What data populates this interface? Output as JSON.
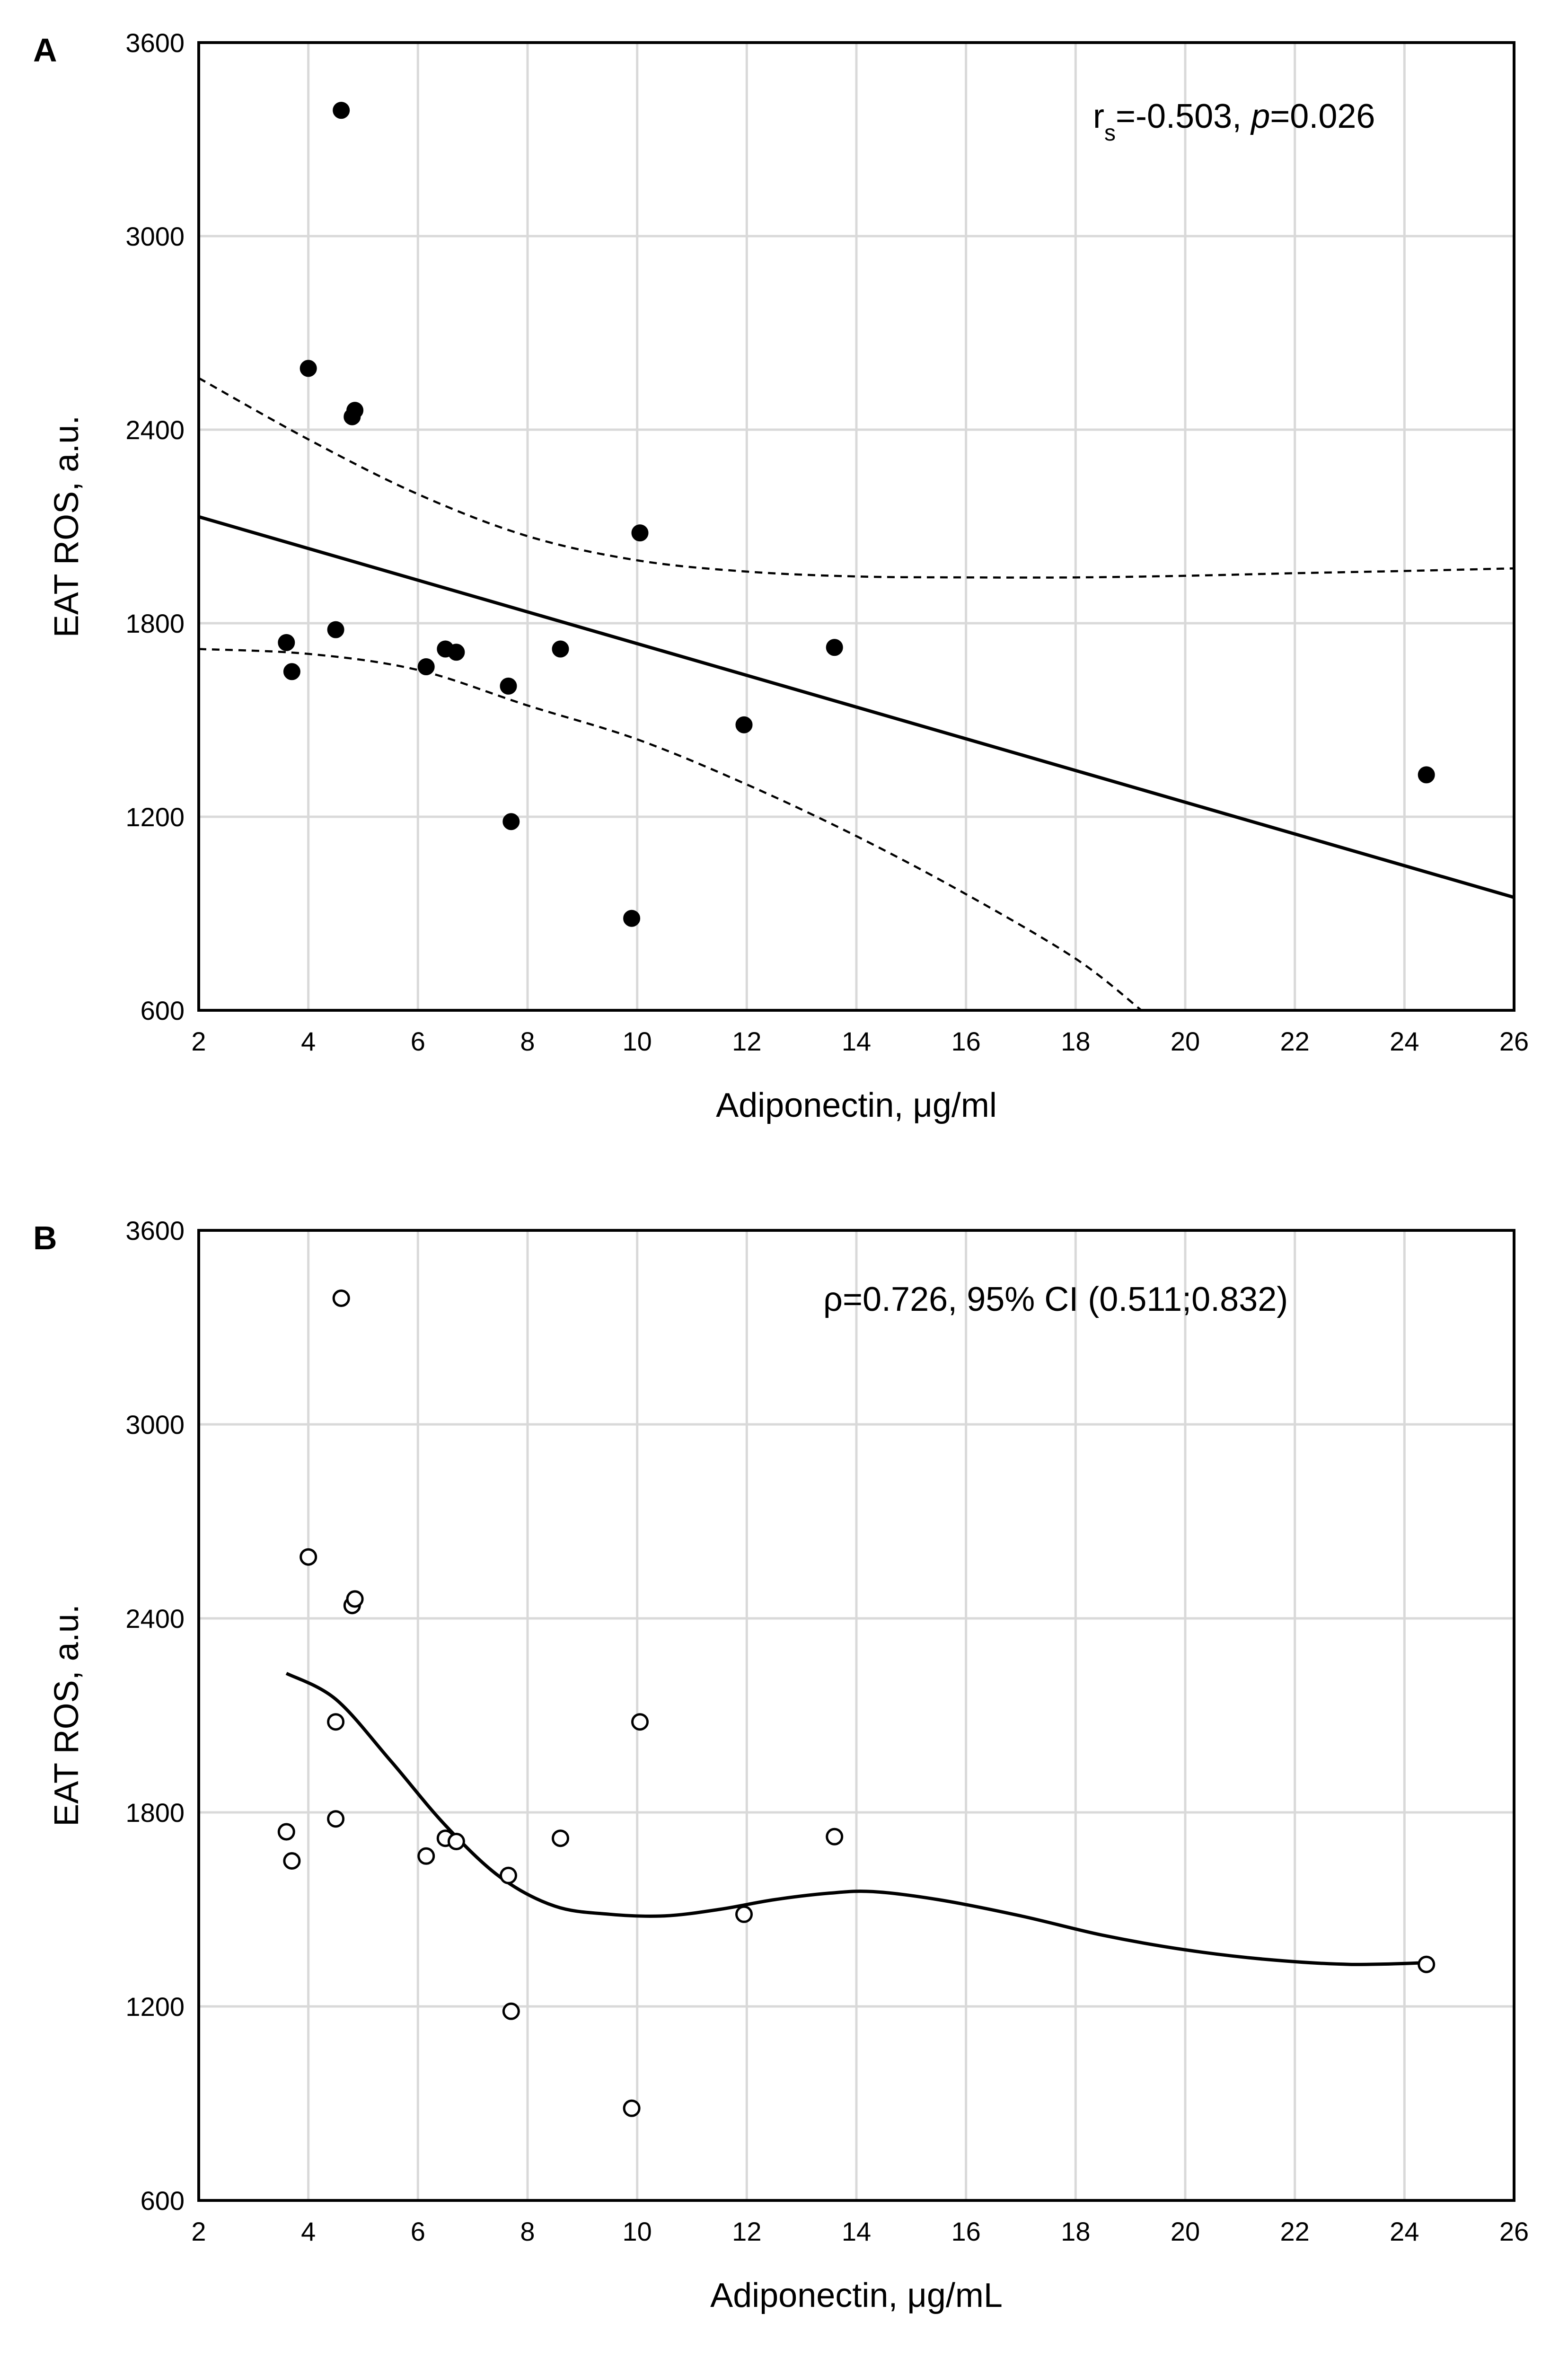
{
  "chart_data": [
    {
      "panel": "A",
      "type": "scatter",
      "xlabel": "Adiponectin, μg/ml",
      "ylabel": "EAT ROS, a.u.",
      "xlim": [
        2,
        26
      ],
      "ylim": [
        600,
        3600
      ],
      "xticks": [
        2,
        4,
        6,
        8,
        10,
        12,
        14,
        16,
        18,
        20,
        22,
        24,
        26
      ],
      "yticks": [
        600,
        1200,
        1800,
        2400,
        3000,
        3600
      ],
      "grid": true,
      "marker": "filled-circle",
      "annotation": {
        "prefix": "r",
        "subscript": "s",
        "middle": "=-0.503, ",
        "italic": "p",
        "suffix": "=0.026"
      },
      "points": [
        {
          "x": 3.6,
          "y": 1740
        },
        {
          "x": 3.7,
          "y": 1650
        },
        {
          "x": 4.0,
          "y": 2590
        },
        {
          "x": 4.5,
          "y": 1780
        },
        {
          "x": 4.6,
          "y": 3390
        },
        {
          "x": 4.8,
          "y": 2440
        },
        {
          "x": 4.85,
          "y": 2460
        },
        {
          "x": 6.15,
          "y": 1665
        },
        {
          "x": 6.5,
          "y": 1720
        },
        {
          "x": 6.7,
          "y": 1710
        },
        {
          "x": 7.65,
          "y": 1605
        },
        {
          "x": 7.7,
          "y": 1185
        },
        {
          "x": 8.6,
          "y": 1720
        },
        {
          "x": 9.9,
          "y": 885
        },
        {
          "x": 10.05,
          "y": 2080
        },
        {
          "x": 11.95,
          "y": 1485
        },
        {
          "x": 13.6,
          "y": 1725
        },
        {
          "x": 24.4,
          "y": 1330
        }
      ],
      "regression_line": [
        {
          "x": 2,
          "y": 2130
        },
        {
          "x": 26,
          "y": 950
        }
      ],
      "ci_upper": [
        {
          "x": 2,
          "y": 2560
        },
        {
          "x": 4,
          "y": 2370
        },
        {
          "x": 6,
          "y": 2200
        },
        {
          "x": 8,
          "y": 2070
        },
        {
          "x": 10,
          "y": 1995
        },
        {
          "x": 12,
          "y": 1960
        },
        {
          "x": 14,
          "y": 1945
        },
        {
          "x": 16,
          "y": 1942
        },
        {
          "x": 18,
          "y": 1942
        },
        {
          "x": 20,
          "y": 1947
        },
        {
          "x": 22,
          "y": 1955
        },
        {
          "x": 24,
          "y": 1962
        },
        {
          "x": 26,
          "y": 1970
        }
      ],
      "ci_lower": [
        {
          "x": 2,
          "y": 1720
        },
        {
          "x": 4,
          "y": 1705
        },
        {
          "x": 6,
          "y": 1655
        },
        {
          "x": 8,
          "y": 1545
        },
        {
          "x": 10,
          "y": 1440
        },
        {
          "x": 12,
          "y": 1300
        },
        {
          "x": 14,
          "y": 1140
        },
        {
          "x": 16,
          "y": 960
        },
        {
          "x": 18,
          "y": 760
        },
        {
          "x": 19.2,
          "y": 600
        }
      ]
    },
    {
      "panel": "B",
      "type": "scatter",
      "xlabel": "Adiponectin, μg/mL",
      "ylabel": "EAT ROS, a.u.",
      "xlim": [
        2,
        26
      ],
      "ylim": [
        600,
        3600
      ],
      "xticks": [
        2,
        4,
        6,
        8,
        10,
        12,
        14,
        16,
        18,
        20,
        22,
        24,
        26
      ],
      "yticks": [
        600,
        1200,
        1800,
        2400,
        3000,
        3600
      ],
      "grid": true,
      "marker": "open-circle",
      "annotation": {
        "text": "ρ=0.726, 95% CI (0.511;0.832)"
      },
      "points": [
        {
          "x": 3.6,
          "y": 1740
        },
        {
          "x": 3.7,
          "y": 1650
        },
        {
          "x": 4.0,
          "y": 2590
        },
        {
          "x": 4.5,
          "y": 2080
        },
        {
          "x": 4.5,
          "y": 1780
        },
        {
          "x": 4.6,
          "y": 3390
        },
        {
          "x": 4.8,
          "y": 2440
        },
        {
          "x": 4.85,
          "y": 2460
        },
        {
          "x": 6.15,
          "y": 1665
        },
        {
          "x": 6.5,
          "y": 1720
        },
        {
          "x": 6.7,
          "y": 1710
        },
        {
          "x": 7.65,
          "y": 1605
        },
        {
          "x": 7.7,
          "y": 1185
        },
        {
          "x": 8.6,
          "y": 1720
        },
        {
          "x": 9.9,
          "y": 885
        },
        {
          "x": 10.05,
          "y": 2080
        },
        {
          "x": 11.95,
          "y": 1485
        },
        {
          "x": 13.6,
          "y": 1725
        },
        {
          "x": 24.4,
          "y": 1330
        }
      ],
      "smooth_curve": [
        {
          "x": 3.6,
          "y": 2230
        },
        {
          "x": 4.5,
          "y": 2150
        },
        {
          "x": 5.5,
          "y": 1960
        },
        {
          "x": 6.5,
          "y": 1760
        },
        {
          "x": 7.5,
          "y": 1600
        },
        {
          "x": 8.5,
          "y": 1510
        },
        {
          "x": 9.5,
          "y": 1485
        },
        {
          "x": 10.5,
          "y": 1480
        },
        {
          "x": 11.5,
          "y": 1500
        },
        {
          "x": 12.5,
          "y": 1530
        },
        {
          "x": 13.5,
          "y": 1550
        },
        {
          "x": 14.3,
          "y": 1555
        },
        {
          "x": 15.5,
          "y": 1530
        },
        {
          "x": 17,
          "y": 1480
        },
        {
          "x": 18.5,
          "y": 1420
        },
        {
          "x": 20,
          "y": 1375
        },
        {
          "x": 21.5,
          "y": 1345
        },
        {
          "x": 23,
          "y": 1330
        },
        {
          "x": 24.4,
          "y": 1335
        }
      ]
    }
  ]
}
